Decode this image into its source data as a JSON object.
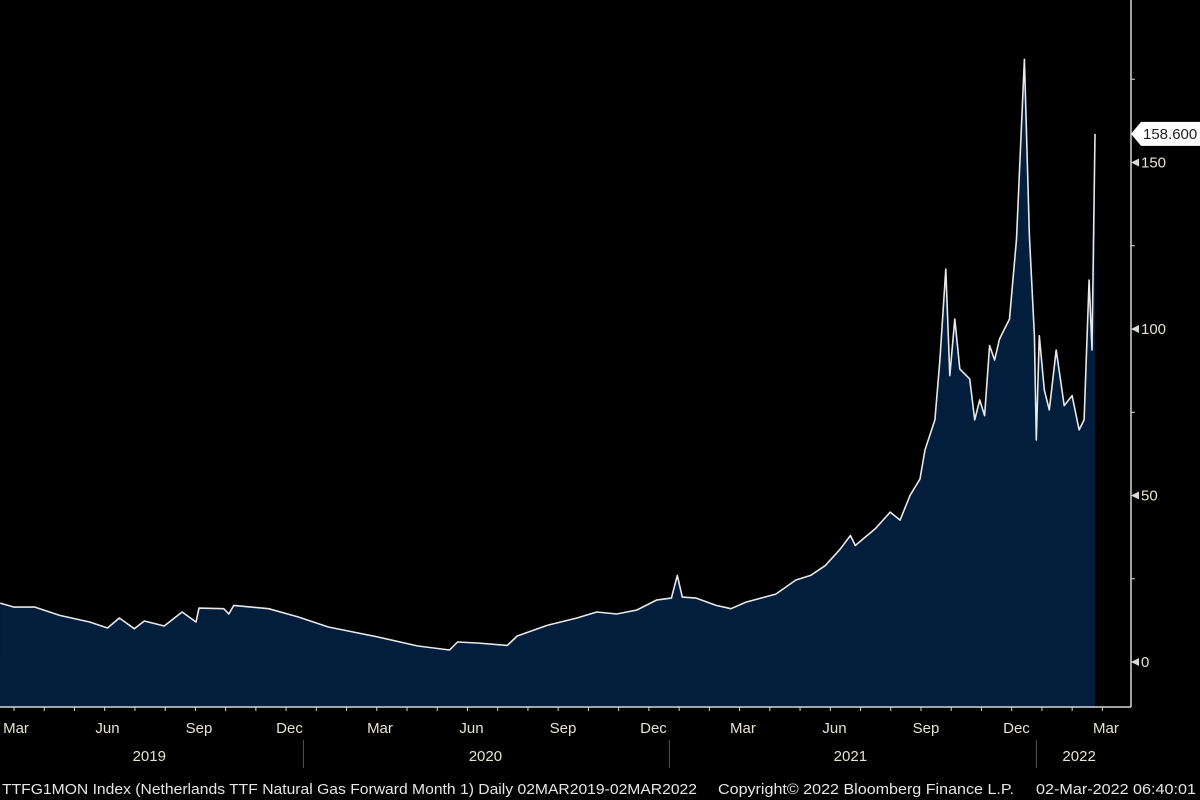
{
  "chart_data": {
    "type": "area",
    "title": "TTFG1MON Index (Netherlands TTF Natural Gas Forward Month 1)",
    "frequency": "Daily",
    "range_label": "Daily 02MAR2019-02MAR2022",
    "x_unit": "days since 02-Mar-2019",
    "ylim": [
      -13.5,
      199
    ],
    "yticks": [
      "0",
      "50",
      "100",
      "150"
    ],
    "ytick_values": [
      0,
      50,
      100,
      150
    ],
    "last_value_label": "158.600",
    "last_value": 158.6,
    "month_ticks": [
      {
        "label": "Mar",
        "day": 0
      },
      {
        "label": "Jun",
        "day": 92
      },
      {
        "label": "Sep",
        "day": 184
      },
      {
        "label": "Dec",
        "day": 275
      },
      {
        "label": "Mar",
        "day": 366
      },
      {
        "label": "Jun",
        "day": 458
      },
      {
        "label": "Sep",
        "day": 550
      },
      {
        "label": "Dec",
        "day": 641
      },
      {
        "label": "Mar",
        "day": 731
      },
      {
        "label": "Jun",
        "day": 823
      },
      {
        "label": "Sep",
        "day": 915
      },
      {
        "label": "Dec",
        "day": 1006
      },
      {
        "label": "Mar",
        "day": 1096
      }
    ],
    "years": [
      {
        "label": "2019",
        "day": 136
      },
      {
        "label": "2020",
        "day": 474
      },
      {
        "label": "2021",
        "day": 841
      },
      {
        "label": "2022",
        "day": 1071
      }
    ],
    "year_separators": [
      291,
      659,
      1028
    ],
    "series": [
      {
        "name": "TTFG1MON Index",
        "points": [
          [
            -14,
            17.7
          ],
          [
            0,
            16.5
          ],
          [
            21,
            16.5
          ],
          [
            46,
            14
          ],
          [
            76,
            12
          ],
          [
            94,
            10.2
          ],
          [
            106,
            13.2
          ],
          [
            121,
            10
          ],
          [
            131,
            12.3
          ],
          [
            151,
            10.8
          ],
          [
            169,
            15
          ],
          [
            183,
            12
          ],
          [
            186,
            16.2
          ],
          [
            211,
            16
          ],
          [
            216,
            14.4
          ],
          [
            221,
            17
          ],
          [
            256,
            16
          ],
          [
            286,
            13.5
          ],
          [
            316,
            10.5
          ],
          [
            336,
            9.3
          ],
          [
            366,
            7.5
          ],
          [
            406,
            4.8
          ],
          [
            438,
            3.6
          ],
          [
            446,
            6
          ],
          [
            466,
            5.7
          ],
          [
            496,
            5
          ],
          [
            506,
            7.8
          ],
          [
            536,
            11
          ],
          [
            566,
            13.2
          ],
          [
            586,
            15
          ],
          [
            606,
            14.4
          ],
          [
            626,
            15.6
          ],
          [
            646,
            18.6
          ],
          [
            661,
            19.2
          ],
          [
            667,
            26
          ],
          [
            672,
            19.5
          ],
          [
            686,
            19.2
          ],
          [
            706,
            17
          ],
          [
            721,
            16
          ],
          [
            736,
            18
          ],
          [
            766,
            20.4
          ],
          [
            786,
            24.6
          ],
          [
            801,
            26
          ],
          [
            816,
            29
          ],
          [
            831,
            34
          ],
          [
            841,
            38
          ],
          [
            846,
            35
          ],
          [
            866,
            40
          ],
          [
            881,
            45
          ],
          [
            891,
            42.6
          ],
          [
            901,
            50
          ],
          [
            911,
            55
          ],
          [
            916,
            63.7
          ],
          [
            926,
            72.7
          ],
          [
            931,
            90.7
          ],
          [
            937,
            118
          ],
          [
            941,
            86
          ],
          [
            946,
            103
          ],
          [
            951,
            88
          ],
          [
            961,
            85
          ],
          [
            966,
            72.7
          ],
          [
            971,
            78.7
          ],
          [
            976,
            74
          ],
          [
            981,
            95
          ],
          [
            986,
            90.7
          ],
          [
            991,
            97
          ],
          [
            1001,
            103
          ],
          [
            1008,
            127
          ],
          [
            1016,
            181
          ],
          [
            1021,
            128
          ],
          [
            1026,
            98
          ],
          [
            1028,
            66.7
          ],
          [
            1031,
            98
          ],
          [
            1036,
            81.7
          ],
          [
            1041,
            75.7
          ],
          [
            1048,
            93.7
          ],
          [
            1056,
            77
          ],
          [
            1064,
            80
          ],
          [
            1071,
            69.7
          ],
          [
            1076,
            72.7
          ],
          [
            1081,
            114.7
          ],
          [
            1084,
            93.7
          ],
          [
            1087,
            158.6
          ]
        ]
      }
    ]
  },
  "footer": {
    "description": "TTFG1MON Index (Netherlands TTF Natural Gas Forward Month 1)  Daily 02MAR2019-02MAR2022",
    "copyright": "Copyright© 2022 Bloomberg Finance L.P.",
    "timestamp": "02-Mar-2022 06:40:01"
  },
  "colors": {
    "area": "#031e3c",
    "line": "#e8e8e8",
    "background": "#000000",
    "axis": "#d8d8d8"
  }
}
